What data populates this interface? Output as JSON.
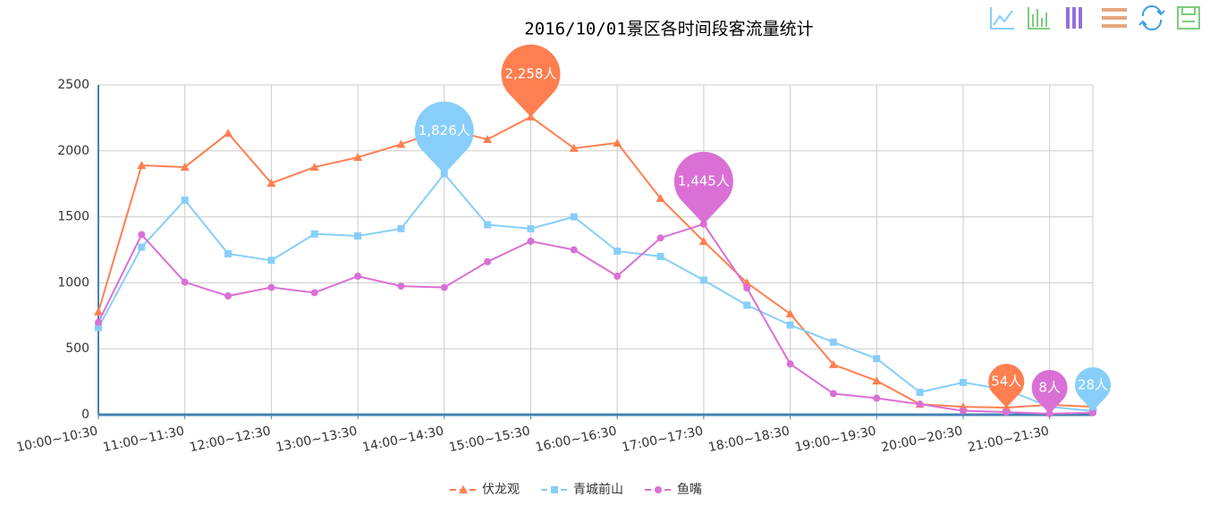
{
  "chart_data": {
    "type": "line",
    "title": "2016/10/01景区各时间段客流量统计",
    "categories": [
      "10:00~10:30",
      null,
      "11:00~11:30",
      null,
      "12:00~12:30",
      null,
      "13:00~13:30",
      null,
      "14:00~14:30",
      null,
      "15:00~15:30",
      null,
      "16:00~16:30",
      null,
      "17:00~17:30",
      null,
      "18:00~18:30",
      null,
      "19:00~19:30",
      null,
      "20:00~20:30",
      null,
      "21:00~21:30",
      null
    ],
    "series": [
      {
        "name": "伏龙观",
        "color": "#ff7f50",
        "symbol": "triangle",
        "values": [
          780,
          1890,
          1877,
          2134,
          1755,
          1877,
          1951,
          2050,
          2168,
          2087,
          2258,
          2020,
          2060,
          1640,
          1314,
          1000,
          765,
          380,
          257,
          80,
          60,
          54,
          75,
          60
        ],
        "mark_points": [
          {
            "index": 10,
            "label": "2,258人"
          },
          {
            "index": 21,
            "label": "54人"
          }
        ]
      },
      {
        "name": "青城前山",
        "color": "#87cefa",
        "symbol": "square",
        "values": [
          660,
          1270,
          1627,
          1220,
          1170,
          1370,
          1355,
          1410,
          1826,
          1440,
          1410,
          1500,
          1240,
          1200,
          1020,
          830,
          680,
          550,
          425,
          170,
          245,
          190,
          60,
          28
        ],
        "mark_points": [
          {
            "index": 8,
            "label": "1,826人"
          },
          {
            "index": 23,
            "label": "28人"
          }
        ]
      },
      {
        "name": "鱼嘴",
        "color": "#da70d6",
        "symbol": "circle",
        "values": [
          700,
          1365,
          1005,
          900,
          965,
          925,
          1050,
          975,
          965,
          1160,
          1315,
          1250,
          1050,
          1340,
          1445,
          960,
          385,
          160,
          125,
          80,
          30,
          20,
          8,
          15
        ],
        "mark_points": [
          {
            "index": 14,
            "label": "1,445人"
          },
          {
            "index": 22,
            "label": "8人"
          }
        ]
      }
    ],
    "ylim": [
      0,
      2500
    ],
    "yticks": [
      0,
      500,
      1000,
      1500,
      2000,
      2500
    ],
    "grid": true
  }
}
